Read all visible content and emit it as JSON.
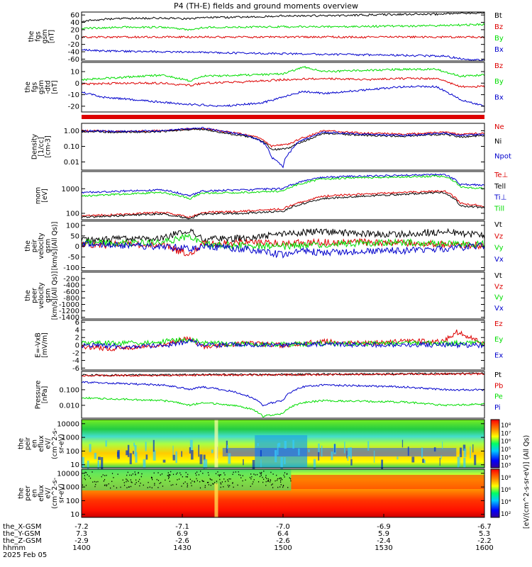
{
  "title": "P4 (TH-E) fields and ground moments overview",
  "colors": {
    "black": "#000000",
    "red": "#dd0000",
    "green": "#00dd00",
    "blue": "#0000cc"
  },
  "chart_data": [
    {
      "type": "line",
      "name": "fgs_gsm",
      "ylabel": [
        "the",
        "fgs",
        "gsm",
        "[nT]"
      ],
      "ylim": [
        -65,
        68
      ],
      "yticks": [
        60,
        40,
        20,
        0,
        -20,
        -40,
        -60
      ],
      "series": [
        {
          "name": "Bt",
          "color": "black",
          "x": [
            0,
            0.06,
            0.1,
            0.2,
            0.27,
            0.3,
            0.4,
            0.5,
            0.6,
            0.7,
            0.8,
            0.88,
            0.95,
            1
          ],
          "y": [
            43,
            49,
            50,
            52,
            49,
            53,
            54,
            58,
            58,
            60,
            62,
            62,
            65,
            66
          ]
        },
        {
          "name": "Bz",
          "color": "red",
          "x": [
            0,
            1
          ],
          "y": [
            0,
            0
          ]
        },
        {
          "name": "By",
          "color": "green",
          "x": [
            0,
            0.06,
            0.1,
            0.2,
            0.27,
            0.3,
            0.4,
            0.5,
            0.6,
            0.7,
            0.8,
            0.88,
            0.95,
            1
          ],
          "y": [
            24,
            25,
            27,
            27,
            20,
            26,
            27,
            28,
            28,
            29,
            30,
            31,
            33,
            34
          ]
        },
        {
          "name": "Bx",
          "color": "blue",
          "x": [
            0,
            0.05,
            0.2,
            0.35,
            0.5,
            0.6,
            0.7,
            0.8,
            0.9,
            0.95,
            1
          ],
          "y": [
            -34,
            -38,
            -40,
            -43,
            -45,
            -47,
            -48,
            -50,
            -52,
            -60,
            -62
          ]
        }
      ]
    },
    {
      "type": "line",
      "name": "fgs_gsm_detrended",
      "ylabel": [
        "the",
        "fgs",
        "gsm",
        "-dtd",
        "[nT]"
      ],
      "ylim": [
        -25,
        18
      ],
      "yticks": [
        10,
        0,
        -10,
        -20
      ],
      "series": [
        {
          "name": "Bz",
          "color": "red",
          "x": [
            0,
            0.1,
            0.2,
            0.27,
            0.3,
            0.4,
            0.5,
            0.6,
            0.7,
            0.8,
            0.88,
            0.94,
            1
          ],
          "y": [
            -1,
            0,
            0,
            -2,
            0,
            1,
            3,
            4,
            3,
            4,
            4,
            -3,
            -3
          ]
        },
        {
          "name": "By",
          "color": "green",
          "x": [
            0,
            0.1,
            0.2,
            0.27,
            0.3,
            0.4,
            0.5,
            0.55,
            0.6,
            0.7,
            0.8,
            0.88,
            0.94,
            1
          ],
          "y": [
            3,
            5,
            7,
            2,
            6,
            7,
            8,
            14,
            10,
            11,
            12,
            12,
            6,
            7
          ]
        },
        {
          "name": "Bx",
          "color": "blue",
          "x": [
            0,
            0.05,
            0.15,
            0.25,
            0.35,
            0.45,
            0.55,
            0.6,
            0.7,
            0.8,
            0.88,
            0.94,
            1
          ],
          "y": [
            -8,
            -12,
            -15,
            -18,
            -20,
            -17,
            -7,
            -9,
            -6,
            -3,
            -3,
            -14,
            -20
          ]
        }
      ]
    },
    {
      "type": "line",
      "name": "density",
      "ylabel": [
        "Density",
        "[1/cc]",
        "[cm-3]"
      ],
      "log": true,
      "ylim": [
        0.003,
        3
      ],
      "yticks": [
        1,
        0.1,
        0.01
      ],
      "yticklabels": [
        "1.00",
        "0.10",
        "0.01"
      ],
      "series": [
        {
          "name": "Ne",
          "color": "red",
          "x": [
            0,
            0.1,
            0.2,
            0.3,
            0.35,
            0.42,
            0.47,
            0.52,
            0.57,
            0.6,
            0.7,
            0.8,
            0.9,
            0.94,
            1
          ],
          "y": [
            1.0,
            0.9,
            1.0,
            1.4,
            0.9,
            0.5,
            0.1,
            0.15,
            0.5,
            1.0,
            0.7,
            0.6,
            0.8,
            0.6,
            0.7
          ]
        },
        {
          "name": "Ni",
          "color": "black",
          "x": [
            0,
            0.1,
            0.2,
            0.3,
            0.35,
            0.42,
            0.47,
            0.52,
            0.57,
            0.6,
            0.7,
            0.8,
            0.9,
            0.94,
            1
          ],
          "y": [
            0.9,
            0.8,
            0.9,
            1.3,
            0.7,
            0.4,
            0.06,
            0.08,
            0.3,
            0.7,
            0.5,
            0.45,
            0.6,
            0.4,
            0.5
          ]
        },
        {
          "name": "Npot",
          "color": "blue",
          "x": [
            0,
            0.1,
            0.2,
            0.3,
            0.35,
            0.42,
            0.47,
            0.5,
            0.52,
            0.57,
            0.6,
            0.7,
            0.8,
            0.9,
            0.94,
            1
          ],
          "y": [
            1.0,
            0.9,
            1.0,
            1.5,
            0.9,
            0.4,
            0.02,
            0.004,
            0.05,
            0.4,
            0.8,
            0.6,
            0.5,
            0.7,
            0.5,
            0.6
          ]
        }
      ]
    },
    {
      "type": "line",
      "name": "temperature",
      "ylabel": [
        "mom",
        "[eV]"
      ],
      "log": true,
      "ylim": [
        55,
        5000
      ],
      "yticks": [
        1000,
        100
      ],
      "yticklabels": [
        "1000",
        "100"
      ],
      "series": [
        {
          "name": "Te⊥",
          "color": "red",
          "x": [
            0,
            0.1,
            0.2,
            0.27,
            0.3,
            0.4,
            0.5,
            0.55,
            0.6,
            0.7,
            0.8,
            0.9,
            0.94,
            1
          ],
          "y": [
            80,
            90,
            110,
            70,
            110,
            120,
            150,
            300,
            500,
            600,
            700,
            800,
            250,
            200
          ]
        },
        {
          "name": "Tell",
          "color": "black",
          "x": [
            0,
            0.1,
            0.2,
            0.27,
            0.3,
            0.4,
            0.5,
            0.55,
            0.6,
            0.7,
            0.8,
            0.9,
            0.94,
            1
          ],
          "y": [
            70,
            80,
            95,
            60,
            95,
            100,
            120,
            250,
            400,
            500,
            600,
            700,
            200,
            170
          ]
        },
        {
          "name": "Ti⊥",
          "color": "blue",
          "x": [
            0,
            0.1,
            0.2,
            0.27,
            0.3,
            0.4,
            0.5,
            0.55,
            0.6,
            0.7,
            0.8,
            0.9,
            0.94,
            1
          ],
          "y": [
            700,
            800,
            900,
            500,
            800,
            900,
            1000,
            2000,
            3000,
            3200,
            3500,
            3800,
            1500,
            1400
          ]
        },
        {
          "name": "Till",
          "color": "green",
          "x": [
            0,
            0.1,
            0.2,
            0.27,
            0.3,
            0.4,
            0.5,
            0.55,
            0.6,
            0.7,
            0.8,
            0.9,
            0.94,
            1
          ],
          "y": [
            500,
            600,
            700,
            400,
            650,
            700,
            800,
            1700,
            2500,
            2800,
            3000,
            3300,
            1200,
            1000
          ]
        }
      ]
    },
    {
      "type": "line",
      "name": "peir_velocity",
      "ylabel": [
        "the",
        "peir",
        "velocity",
        "gsm",
        "[km/s](All Qs)]"
      ],
      "ylim": [
        -115,
        120
      ],
      "yticks": [
        100,
        50,
        0,
        -50,
        -100
      ],
      "series": [
        {
          "name": "Vt",
          "color": "black",
          "x": [
            0,
            0.1,
            0.2,
            0.27,
            0.3,
            0.4,
            0.5,
            0.6,
            0.7,
            0.8,
            0.9,
            1
          ],
          "y": [
            30,
            35,
            40,
            80,
            35,
            40,
            60,
            70,
            60,
            60,
            70,
            50
          ]
        },
        {
          "name": "Vz",
          "color": "red",
          "x": [
            0,
            0.1,
            0.2,
            0.27,
            0.3,
            0.4,
            0.5,
            0.6,
            0.7,
            0.8,
            0.9,
            1
          ],
          "y": [
            5,
            10,
            5,
            -40,
            10,
            20,
            15,
            20,
            20,
            15,
            10,
            5
          ]
        },
        {
          "name": "Vy",
          "color": "green",
          "x": [
            0,
            0.1,
            0.2,
            0.27,
            0.3,
            0.4,
            0.5,
            0.6,
            0.7,
            0.8,
            0.9,
            1
          ],
          "y": [
            20,
            15,
            20,
            50,
            10,
            5,
            0,
            10,
            15,
            20,
            15,
            10
          ]
        },
        {
          "name": "Vx",
          "color": "blue",
          "x": [
            0,
            0.1,
            0.2,
            0.27,
            0.3,
            0.4,
            0.5,
            0.55,
            0.6,
            0.7,
            0.8,
            0.9,
            1
          ],
          "y": [
            10,
            5,
            0,
            -10,
            0,
            -10,
            -40,
            -20,
            -30,
            -20,
            -20,
            -10,
            5
          ]
        }
      ]
    },
    {
      "type": "line",
      "name": "peer_velocity",
      "ylabel": [
        "the",
        "peer",
        "velocity",
        "gsm",
        "[km/s](All Qs)]"
      ],
      "ylim": [
        -1450,
        0
      ],
      "yticks": [
        -200,
        -400,
        -600,
        -800,
        -1000,
        -1200,
        -1400
      ],
      "series": [
        {
          "name": "Vt",
          "color": "black",
          "x": [],
          "y": []
        },
        {
          "name": "Vz",
          "color": "red",
          "x": [],
          "y": []
        },
        {
          "name": "Vy",
          "color": "green",
          "x": [],
          "y": []
        },
        {
          "name": "Vx",
          "color": "blue",
          "x": [],
          "y": []
        }
      ]
    },
    {
      "type": "line",
      "name": "e_field",
      "ylabel": [
        "E=-VxB",
        "[mV/m]"
      ],
      "ylim": [
        -6.5,
        6.5
      ],
      "yticks": [
        6,
        4,
        2,
        0,
        -2,
        -4,
        -6
      ],
      "series": [
        {
          "name": "Ez",
          "color": "red",
          "x": [
            0,
            0.1,
            0.2,
            0.27,
            0.3,
            0.4,
            0.5,
            0.6,
            0.7,
            0.8,
            0.9,
            0.93,
            1
          ],
          "y": [
            -0.5,
            -1,
            0,
            2,
            -0.5,
            0.5,
            0,
            1,
            0.5,
            1,
            1,
            3.5,
            0.5
          ]
        },
        {
          "name": "Ey",
          "color": "green",
          "x": [
            0,
            0.1,
            0.2,
            0.27,
            0.3,
            0.4,
            0.5,
            0.6,
            0.7,
            0.8,
            0.9,
            1
          ],
          "y": [
            0.5,
            0.5,
            1,
            1.5,
            0.5,
            0.3,
            0.2,
            0.5,
            0.4,
            0.5,
            0.5,
            0.8
          ]
        },
        {
          "name": "Ex",
          "color": "blue",
          "x": [
            0,
            0.1,
            0.2,
            0.27,
            0.3,
            0.4,
            0.5,
            0.6,
            0.7,
            0.8,
            0.9,
            1
          ],
          "y": [
            0,
            -0.3,
            -0.2,
            1,
            0,
            0.2,
            0,
            0.2,
            0.1,
            0.2,
            0,
            0
          ]
        }
      ]
    },
    {
      "type": "line",
      "name": "pressure",
      "ylabel": [
        "Pressure",
        "[nPa]"
      ],
      "log": true,
      "ylim": [
        0.0015,
        1.5
      ],
      "yticks": [
        0.1,
        0.01
      ],
      "yticklabels": [
        "0.100",
        "0.010"
      ],
      "series": [
        {
          "name": "Pt",
          "color": "black",
          "x": [
            0,
            0.5,
            1
          ],
          "y": [
            0.85,
            0.95,
            1.1
          ]
        },
        {
          "name": "Pb",
          "color": "red",
          "x": [
            0,
            0.5,
            1
          ],
          "y": [
            0.8,
            0.9,
            1.05
          ]
        },
        {
          "name": "Pe",
          "color": "green",
          "x": [
            0,
            0.1,
            0.2,
            0.27,
            0.3,
            0.4,
            0.45,
            0.5,
            0.55,
            0.6,
            0.7,
            0.8,
            0.9,
            1
          ],
          "y": [
            0.03,
            0.025,
            0.02,
            0.01,
            0.015,
            0.008,
            0.002,
            0.003,
            0.015,
            0.02,
            0.018,
            0.016,
            0.01,
            0.012
          ]
        },
        {
          "name": "Pi",
          "color": "blue",
          "x": [
            0,
            0.1,
            0.2,
            0.27,
            0.3,
            0.4,
            0.45,
            0.5,
            0.55,
            0.6,
            0.7,
            0.8,
            0.9,
            1
          ],
          "y": [
            0.3,
            0.25,
            0.2,
            0.1,
            0.15,
            0.05,
            0.01,
            0.02,
            0.15,
            0.2,
            0.18,
            0.15,
            0.1,
            0.1
          ]
        }
      ]
    },
    {
      "type": "heatmap",
      "name": "peir_en_eflux",
      "ylabel": [
        "the",
        "peir",
        "en",
        "eflux",
        "eV/",
        "(cm^2-s-",
        "sr-eV)"
      ],
      "log": true,
      "ylim": [
        6,
        20000
      ],
      "yticks": [
        10000,
        1000,
        100,
        10
      ],
      "yticklabels": [
        "10000",
        "1000",
        "100",
        "10"
      ]
    },
    {
      "type": "heatmap",
      "name": "peer_en_eflux",
      "ylabel": [
        "the",
        "peer",
        "en",
        "eflux",
        "eV/",
        "(cm^2-s-",
        "sr-eV)"
      ],
      "log": true,
      "ylim": [
        6,
        20000
      ],
      "yticks": [
        10000,
        1000,
        100,
        10
      ],
      "yticklabels": [
        "10000",
        "1000",
        "100",
        "10"
      ]
    }
  ],
  "colorbar": {
    "label": "[eV/(cm^2-s-sr-eV)] (All Qs)",
    "upper": [
      "10⁸",
      "10⁷",
      "10⁶",
      "10⁵",
      "10⁴",
      "10³"
    ],
    "lower": [
      "10⁸",
      "10⁶",
      "10⁴",
      "10²"
    ]
  },
  "xaxis": {
    "rows": [
      {
        "label": "the_X-GSM",
        "values": [
          "-7.2",
          "-7.1",
          "-7.0",
          "-6.9",
          "-6.7"
        ]
      },
      {
        "label": "the_Y-GSM",
        "values": [
          "7.3",
          "6.9",
          "6.4",
          "5.9",
          "5.3"
        ]
      },
      {
        "label": "the_Z-GSM",
        "values": [
          "-2.9",
          "-2.6",
          "-2.6",
          "-2.4",
          "-2.2"
        ]
      },
      {
        "label": "hhmm",
        "values": [
          "1400",
          "1430",
          "1500",
          "1530",
          "1600"
        ]
      }
    ],
    "date": "2025 Feb 05"
  }
}
